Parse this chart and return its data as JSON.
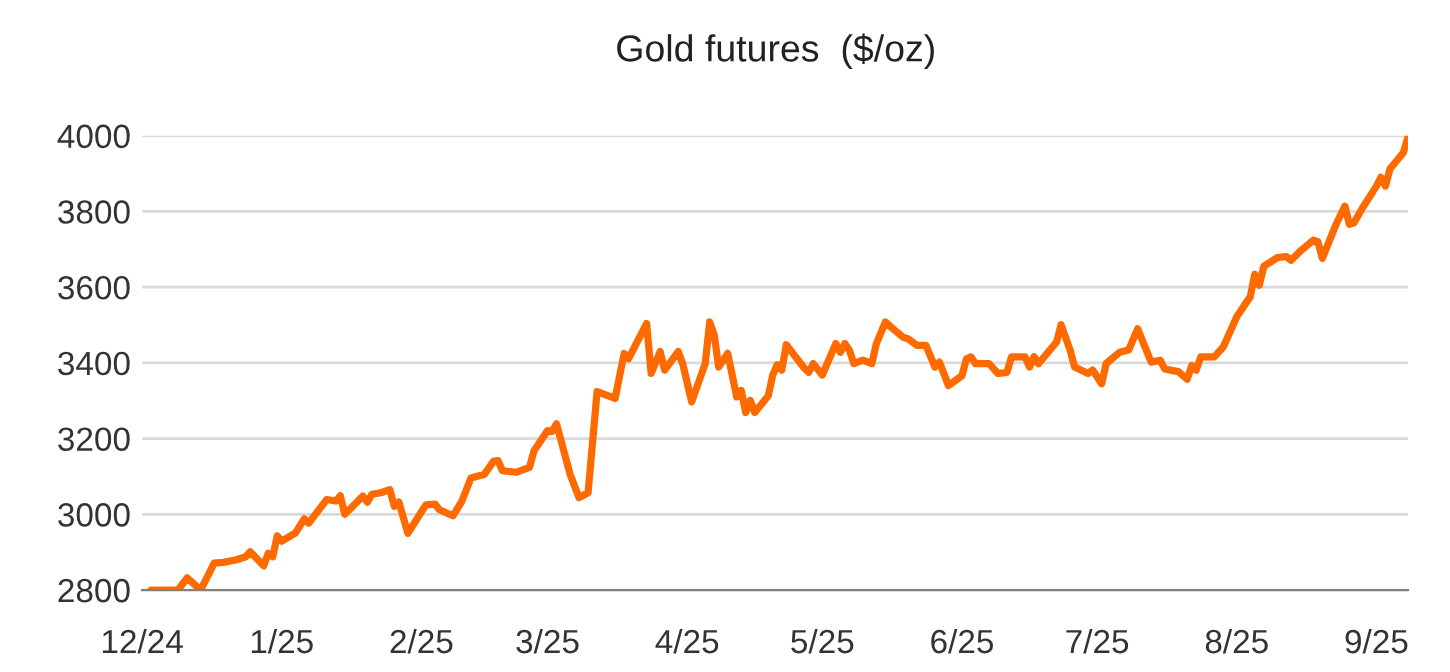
{
  "chart_data": {
    "type": "line",
    "title": "Gold futures  ($/oz)",
    "x": [
      "2024-12-03",
      "2024-12-09",
      "2024-12-11",
      "2024-12-14",
      "2024-12-17",
      "2024-12-19",
      "2024-12-22",
      "2024-12-24",
      "2024-12-25",
      "2024-12-28",
      "2024-12-29",
      "2024-12-30",
      "2024-12-31",
      "2025-01-01",
      "2025-01-04",
      "2025-01-06",
      "2025-01-07",
      "2025-01-11",
      "2025-01-13",
      "2025-01-14",
      "2025-01-15",
      "2025-01-19",
      "2025-01-20",
      "2025-01-21",
      "2025-01-23",
      "2025-01-25",
      "2025-01-26",
      "2025-01-27",
      "2025-01-29",
      "2025-02-02",
      "2025-02-04",
      "2025-02-05",
      "2025-02-08",
      "2025-02-10",
      "2025-02-12",
      "2025-02-15",
      "2025-02-17",
      "2025-02-18",
      "2025-02-19",
      "2025-02-22",
      "2025-02-25",
      "2025-02-26",
      "2025-03-01",
      "2025-03-02",
      "2025-03-03",
      "2025-03-06",
      "2025-03-08",
      "2025-03-10",
      "2025-03-12",
      "2025-03-16",
      "2025-03-18",
      "2025-03-19",
      "2025-03-23",
      "2025-03-24",
      "2025-03-26",
      "2025-03-27",
      "2025-03-30",
      "2025-03-31",
      "2025-04-02",
      "2025-04-05",
      "2025-04-06",
      "2025-04-07",
      "2025-04-08",
      "2025-04-10",
      "2025-04-12",
      "2025-04-13",
      "2025-04-14",
      "2025-04-15",
      "2025-04-16",
      "2025-04-19",
      "2025-04-20",
      "2025-04-21",
      "2025-04-22",
      "2025-04-23",
      "2025-04-27",
      "2025-04-28",
      "2025-04-29",
      "2025-05-01",
      "2025-05-04",
      "2025-05-05",
      "2025-05-06",
      "2025-05-07",
      "2025-05-08",
      "2025-05-10",
      "2025-05-12",
      "2025-05-13",
      "2025-05-15",
      "2025-05-17",
      "2025-05-19",
      "2025-05-20",
      "2025-05-22",
      "2025-05-24",
      "2025-05-26",
      "2025-05-27",
      "2025-05-29",
      "2025-06-01",
      "2025-06-02",
      "2025-06-03",
      "2025-06-04",
      "2025-06-07",
      "2025-06-09",
      "2025-06-11",
      "2025-06-12",
      "2025-06-15",
      "2025-06-16",
      "2025-06-17",
      "2025-06-18",
      "2025-06-22",
      "2025-06-23",
      "2025-06-25",
      "2025-06-26",
      "2025-06-29",
      "2025-06-30",
      "2025-07-02",
      "2025-07-03",
      "2025-07-06",
      "2025-07-08",
      "2025-07-10",
      "2025-07-13",
      "2025-07-15",
      "2025-07-16",
      "2025-07-19",
      "2025-07-21",
      "2025-07-22",
      "2025-07-23",
      "2025-07-24",
      "2025-07-27",
      "2025-07-29",
      "2025-08-01",
      "2025-08-04",
      "2025-08-05",
      "2025-08-06",
      "2025-08-07",
      "2025-08-10",
      "2025-08-12",
      "2025-08-13",
      "2025-08-15",
      "2025-08-18",
      "2025-08-19",
      "2025-08-20",
      "2025-08-23",
      "2025-08-25",
      "2025-08-26",
      "2025-08-27",
      "2025-08-29",
      "2025-09-01",
      "2025-09-02",
      "2025-09-03",
      "2025-09-04",
      "2025-09-07",
      "2025-09-08"
    ],
    "series": [
      {
        "color": "#ff6a00",
        "values": [
          2800,
          2800,
          2832,
          2800,
          2871,
          2873,
          2880,
          2888,
          2901,
          2864,
          2897,
          2888,
          2943,
          2929,
          2950,
          2988,
          2977,
          3039,
          3035,
          3049,
          3000,
          3048,
          3032,
          3053,
          3057,
          3065,
          3021,
          3032,
          2950,
          3025,
          3027,
          3012,
          2996,
          3035,
          3096,
          3106,
          3140,
          3142,
          3115,
          3111,
          3124,
          3168,
          3221,
          3219,
          3239,
          3106,
          3044,
          3057,
          3324,
          3306,
          3425,
          3411,
          3504,
          3372,
          3430,
          3381,
          3430,
          3398,
          3297,
          3398,
          3508,
          3474,
          3389,
          3425,
          3310,
          3327,
          3269,
          3301,
          3269,
          3313,
          3368,
          3395,
          3381,
          3448,
          3386,
          3375,
          3398,
          3368,
          3451,
          3428,
          3451,
          3434,
          3398,
          3407,
          3398,
          3451,
          3508,
          3487,
          3467,
          3464,
          3446,
          3446,
          3389,
          3402,
          3340,
          3366,
          3411,
          3416,
          3398,
          3398,
          3372,
          3375,
          3416,
          3416,
          3389,
          3416,
          3398,
          3455,
          3501,
          3434,
          3389,
          3372,
          3381,
          3345,
          3398,
          3428,
          3434,
          3490,
          3402,
          3407,
          3384,
          3377,
          3357,
          3393,
          3381,
          3416,
          3416,
          3442,
          3522,
          3575,
          3634,
          3605,
          3655,
          3678,
          3681,
          3671,
          3694,
          3724,
          3720,
          3676,
          3765,
          3814,
          3766,
          3770,
          3811,
          3867,
          3890,
          3867,
          3912,
          3956,
          3996
        ]
      }
    ],
    "xlim": [
      "2024-12-01",
      "2025-09-08"
    ],
    "xticks": [
      {
        "value": "2024-12-01",
        "label": "12/24"
      },
      {
        "value": "2025-01-01",
        "label": "1/25"
      },
      {
        "value": "2025-02-01",
        "label": "2/25"
      },
      {
        "value": "2025-03-01",
        "label": "3/25"
      },
      {
        "value": "2025-04-01",
        "label": "4/25"
      },
      {
        "value": "2025-05-01",
        "label": "5/25"
      },
      {
        "value": "2025-06-01",
        "label": "6/25"
      },
      {
        "value": "2025-07-01",
        "label": "7/25"
      },
      {
        "value": "2025-08-01",
        "label": "8/25"
      },
      {
        "value": "2025-09-01",
        "label": "9/25"
      }
    ],
    "ylim": [
      2800,
      4000
    ],
    "yticks": [
      2800,
      3000,
      3200,
      3400,
      3600,
      3800,
      4000
    ],
    "grid": "y"
  }
}
